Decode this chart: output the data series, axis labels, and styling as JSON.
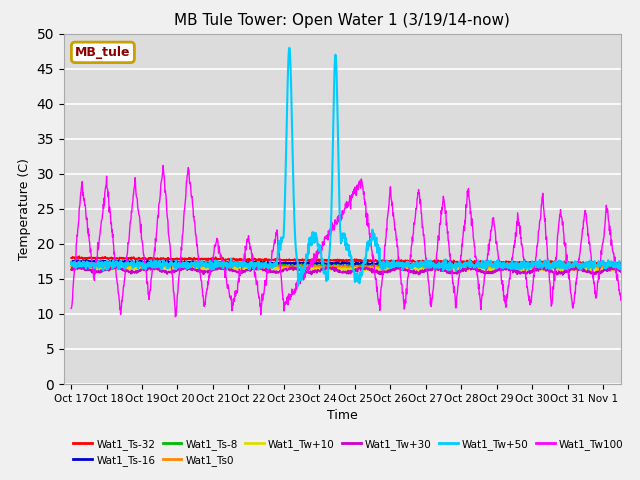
{
  "title": "MB Tule Tower: Open Water 1 (3/19/14-now)",
  "xlabel": "Time",
  "ylabel": "Temperature (C)",
  "ylim": [
    0,
    50
  ],
  "yticks": [
    0,
    5,
    10,
    15,
    20,
    25,
    30,
    35,
    40,
    45,
    50
  ],
  "bg_color": "#dcdcdc",
  "legend_label": "MB_tule",
  "legend_box_color": "#c8a000",
  "legend_text_color": "#8b0000",
  "x_tick_labels": [
    "Oct 17",
    "Oct 18",
    "Oct 19",
    "Oct 20",
    "Oct 21",
    "Oct 22",
    "Oct 23",
    "Oct 24",
    "Oct 25",
    "Oct 26",
    "Oct 27",
    "Oct 28",
    "Oct 29",
    "Oct 30",
    "Oct 31",
    "Nov 1"
  ],
  "x_tick_positions": [
    0,
    1,
    2,
    3,
    4,
    5,
    6,
    7,
    8,
    9,
    10,
    11,
    12,
    13,
    14,
    15
  ],
  "colors": {
    "ts32": "#ff0000",
    "ts16": "#0000cc",
    "ts8": "#00bb00",
    "ts0": "#ff8800",
    "tw10": "#dddd00",
    "tw30": "#cc00cc",
    "tw50": "#00ccff",
    "tw100": "#ff00ff"
  }
}
